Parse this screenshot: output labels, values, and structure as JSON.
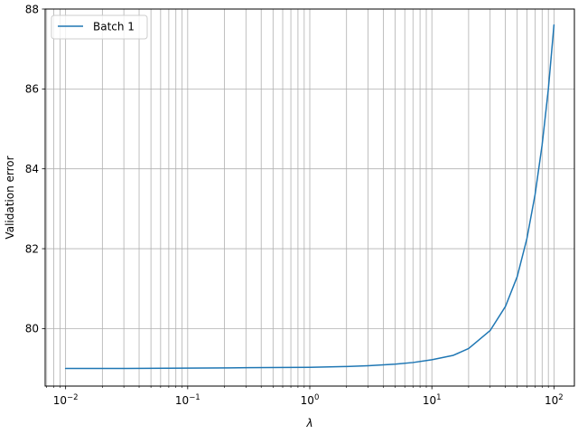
{
  "chart_data": {
    "type": "line",
    "title": "",
    "xlabel": "λ",
    "ylabel": "Validation error",
    "xscale": "log",
    "xlim": [
      0.0068,
      147
    ],
    "ylim": [
      78.56,
      88.0
    ],
    "grid": true,
    "grid_axis": "x",
    "grid_minor_x": true,
    "x_major_ticks": [
      {
        "value": 0.01,
        "base": "10",
        "exp": "−2"
      },
      {
        "value": 0.1,
        "base": "10",
        "exp": "−1"
      },
      {
        "value": 1,
        "base": "10",
        "exp": "0"
      },
      {
        "value": 10,
        "base": "10",
        "exp": "1"
      },
      {
        "value": 100,
        "base": "10",
        "exp": "2"
      }
    ],
    "y_ticks": [
      {
        "value": 80,
        "label": "80"
      },
      {
        "value": 82,
        "label": "82"
      },
      {
        "value": 84,
        "label": "84"
      },
      {
        "value": 86,
        "label": "86"
      },
      {
        "value": 88,
        "label": "88"
      }
    ],
    "legend": {
      "position": "top-left"
    },
    "series": [
      {
        "name": "Batch 1",
        "color": "#1f77b4",
        "x": [
          0.01,
          0.0316,
          0.1,
          0.316,
          1,
          2,
          3,
          5,
          7,
          10,
          15,
          20,
          30,
          40,
          50,
          60,
          70,
          80,
          90,
          100
        ],
        "y": [
          79.0,
          79.0,
          79.01,
          79.02,
          79.03,
          79.05,
          79.07,
          79.11,
          79.15,
          79.22,
          79.33,
          79.5,
          79.95,
          80.55,
          81.3,
          82.25,
          83.35,
          84.6,
          86.0,
          87.6
        ]
      }
    ]
  }
}
